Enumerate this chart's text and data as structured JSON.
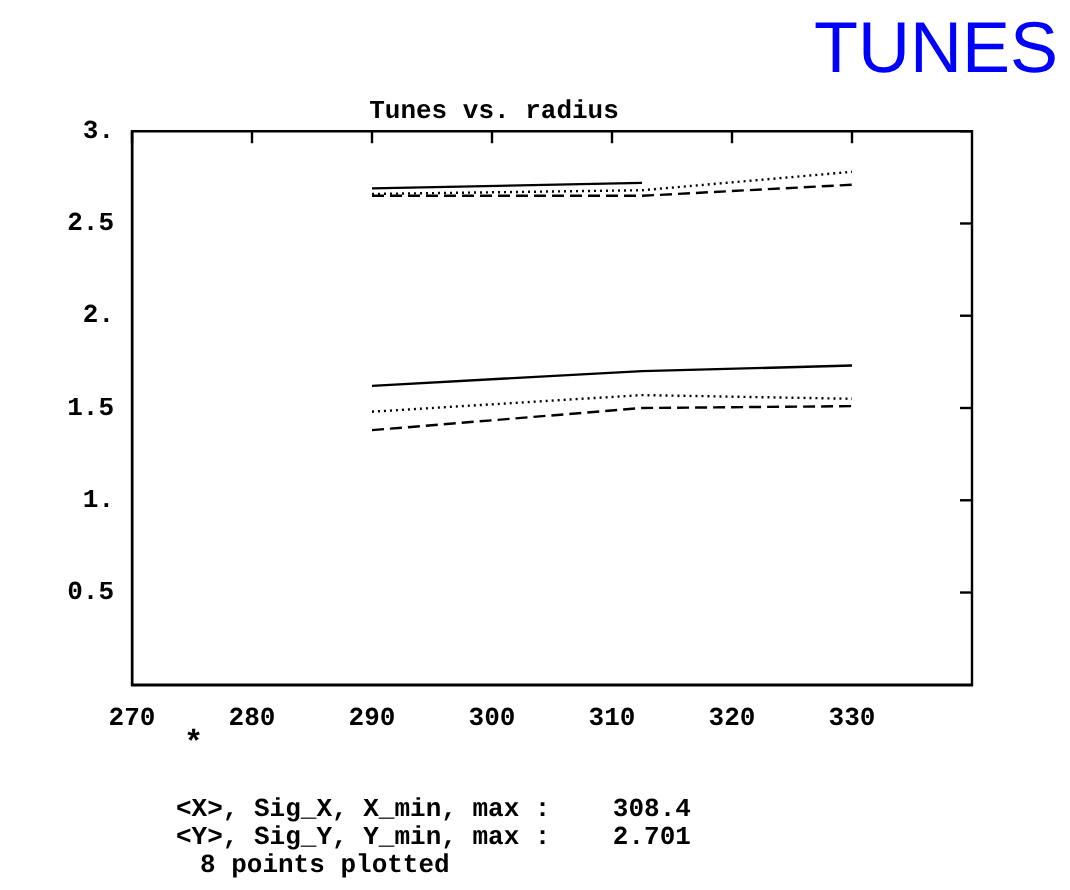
{
  "chart_data": {
    "type": "line",
    "title": "Tunes vs. radius",
    "marker": "none",
    "grid": false,
    "legend": false,
    "xlim": [
      270,
      340
    ],
    "xticks": [
      270,
      280,
      290,
      300,
      310,
      320,
      330
    ],
    "ylim": [
      0,
      3
    ],
    "yticks": [
      {
        "value": 0.5,
        "label": "0.5"
      },
      {
        "value": 1,
        "label": "1."
      },
      {
        "value": 1.5,
        "label": "1.5"
      },
      {
        "value": 2,
        "label": "2."
      },
      {
        "value": 2.5,
        "label": "2.5"
      },
      {
        "value": 3,
        "label": "3."
      }
    ],
    "series": [
      {
        "color": "#000000",
        "line_style": "solid",
        "x": [
          290,
          312.5
        ],
        "values": [
          2.69,
          2.72
        ]
      },
      {
        "color": "#000000",
        "line_style": "dotted",
        "x": [
          290,
          312.5,
          330
        ],
        "values": [
          2.66,
          2.68,
          2.78
        ]
      },
      {
        "color": "#000000",
        "line_style": "dashed",
        "x": [
          290,
          312.5,
          330
        ],
        "values": [
          2.65,
          2.65,
          2.71
        ]
      },
      {
        "color": "#000000",
        "line_style": "solid",
        "x": [
          290,
          312.5,
          330
        ],
        "values": [
          1.62,
          1.7,
          1.73
        ]
      },
      {
        "color": "#000000",
        "line_style": "dotted",
        "x": [
          290,
          312.5,
          330
        ],
        "values": [
          1.48,
          1.57,
          1.55
        ]
      },
      {
        "color": "#000000",
        "line_style": "dashed",
        "x": [
          290,
          312.5,
          330
        ],
        "values": [
          1.38,
          1.5,
          1.51
        ]
      }
    ],
    "annotations": [
      "TUNES",
      "*",
      "<X>, Sig_X, X_min, max :    308.4",
      "<Y>, Sig_Y, Y_min, max :    2.701",
      "8 points plotted"
    ]
  }
}
